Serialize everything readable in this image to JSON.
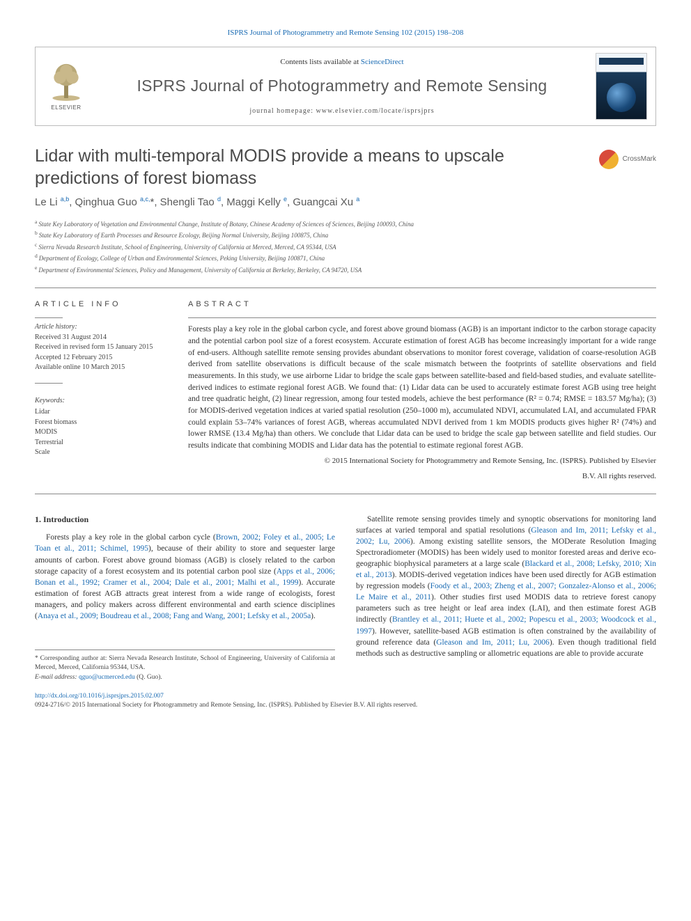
{
  "top_citation": "ISPRS Journal of Photogrammetry and Remote Sensing 102 (2015) 198–208",
  "header": {
    "contents_prefix": "Contents lists available at ",
    "contents_link": "ScienceDirect",
    "journal_name": "ISPRS Journal of Photogrammetry and Remote Sensing",
    "homepage_label": "journal homepage: www.elsevier.com/locate/isprsjprs",
    "publisher_logo_text": "ELSEVIER"
  },
  "crossmark_label": "CrossMark",
  "title": "Lidar with multi-temporal MODIS provide a means to upscale predictions of forest biomass",
  "authors_html": "Le Li <sup>a,b</sup>, Qinghua Guo <sup>a,c,</sup><span class='corr'>*</span>, Shengli Tao <sup>d</sup>, Maggi Kelly <sup>e</sup>, Guangcai Xu <sup>a</sup>",
  "affiliations": [
    {
      "key": "a",
      "text": "State Key Laboratory of Vegetation and Environmental Change, Institute of Botany, Chinese Academy of Sciences of Sciences, Beijing 100093, China"
    },
    {
      "key": "b",
      "text": "State Key Laboratory of Earth Processes and Resource Ecology, Beijing Normal University, Beijing 100875, China"
    },
    {
      "key": "c",
      "text": "Sierra Nevada Research Institute, School of Engineering, University of California at Merced, Merced, CA 95344, USA"
    },
    {
      "key": "d",
      "text": "Department of Ecology, College of Urban and Environmental Sciences, Peking University, Beijing 100871, China"
    },
    {
      "key": "e",
      "text": "Department of Environmental Sciences, Policy and Management, University of California at Berkeley, Berkeley, CA 94720, USA"
    }
  ],
  "article_info": {
    "heading": "article info",
    "history_label": "Article history:",
    "history": [
      "Received 31 August 2014",
      "Received in revised form 15 January 2015",
      "Accepted 12 February 2015",
      "Available online 10 March 2015"
    ],
    "keywords_label": "Keywords:",
    "keywords": [
      "Lidar",
      "Forest biomass",
      "MODIS",
      "Terrestrial",
      "Scale"
    ]
  },
  "abstract": {
    "heading": "abstract",
    "text": "Forests play a key role in the global carbon cycle, and forest above ground biomass (AGB) is an important indictor to the carbon storage capacity and the potential carbon pool size of a forest ecosystem. Accurate estimation of forest AGB has become increasingly important for a wide range of end-users. Although satellite remote sensing provides abundant observations to monitor forest coverage, validation of coarse-resolution AGB derived from satellite observations is difficult because of the scale mismatch between the footprints of satellite observations and field measurements. In this study, we use airborne Lidar to bridge the scale gaps between satellite-based and field-based studies, and evaluate satellite-derived indices to estimate regional forest AGB. We found that: (1) Lidar data can be used to accurately estimate forest AGB using tree height and tree quadratic height, (2) linear regression, among four tested models, achieve the best performance (R² = 0.74; RMSE = 183.57 Mg/ha); (3) for MODIS-derived vegetation indices at varied spatial resolution (250–1000 m), accumulated NDVI, accumulated LAI, and accumulated FPAR could explain 53–74% variances of forest AGB, whereas accumulated NDVI derived from 1 km MODIS products gives higher R² (74%) and lower RMSE (13.4 Mg/ha) than others. We conclude that Lidar data can be used to bridge the scale gap between satellite and field studies. Our results indicate that combining MODIS and Lidar data has the potential to estimate regional forest AGB.",
    "copyright1": "© 2015 International Society for Photogrammetry and Remote Sensing, Inc. (ISPRS). Published by Elsevier",
    "copyright2": "B.V. All rights reserved."
  },
  "body": {
    "intro_heading": "1. Introduction",
    "left_p1_a": "Forests play a key role in the global carbon cycle (",
    "left_p1_cite1": "Brown, 2002; Foley et al., 2005; Le Toan et al., 2011; Schimel, 1995",
    "left_p1_b": "), because of their ability to store and sequester large amounts of carbon. Forest above ground biomass (AGB) is closely related to the carbon storage capacity of a forest ecosystem and its potential carbon pool size (",
    "left_p1_cite2": "Apps et al., 2006; Bonan et al., 1992; Cramer et al., 2004; Dale et al., 2001; Malhi et al., 1999",
    "left_p1_c": "). Accurate estimation of forest AGB attracts great interest from a wide range of ecologists, forest managers, and policy makers across different environmental and earth science disciplines (",
    "left_p1_cite3": "Anaya et al., 2009; Boudreau et al., 2008; Fang and Wang, 2001; Lefsky et al., 2005a",
    "left_p1_d": ").",
    "right_p1_a": "Satellite remote sensing provides timely and synoptic observations for monitoring land surfaces at varied temporal and spatial resolutions (",
    "right_p1_cite1": "Gleason and Im, 2011; Lefsky et al., 2002; Lu, 2006",
    "right_p1_b": "). Among existing satellite sensors, the MODerate Resolution Imaging Spectroradiometer (MODIS) has been widely used to monitor forested areas and derive eco-geographic biophysical parameters at a large scale (",
    "right_p1_cite2": "Blackard et al., 2008; Lefsky, 2010; Xin et al., 2013",
    "right_p1_c": "). MODIS-derived vegetation indices have been used directly for AGB estimation by regression models (",
    "right_p1_cite3": "Foody et al., 2003; Zheng et al., 2007; Gonzalez-Alonso et al., 2006; Le Maire et al., 2011",
    "right_p1_d": "). Other studies first used MODIS data to retrieve forest canopy parameters such as tree height or leaf area index (LAI), and then estimate forest AGB indirectly (",
    "right_p1_cite4": "Brantley et al., 2011; Huete et al., 2002; Popescu et al., 2003; Woodcock et al., 1997",
    "right_p1_e": "). However, satellite-based AGB estimation is often constrained by the availability of ground reference data (",
    "right_p1_cite5": "Gleason and Im, 2011; Lu, 2006",
    "right_p1_f": "). Even though traditional field methods such as destructive sampling or allometric equations are able to provide accurate"
  },
  "footnotes": {
    "corr": "* Corresponding author at: Sierra Nevada Research Institute, School of Engineering, University of California at Merced, Merced, California 95344, USA.",
    "email_label": "E-mail address: ",
    "email": "qguo@ucmerced.edu",
    "email_who": " (Q. Guo)."
  },
  "footer": {
    "doi": "http://dx.doi.org/10.1016/j.isprsjprs.2015.02.007",
    "issn_line": "0924-2716/© 2015 International Society for Photogrammetry and Remote Sensing, Inc. (ISPRS). Published by Elsevier B.V. All rights reserved."
  },
  "colors": {
    "link": "#1a6bb3",
    "text": "#333333",
    "muted": "#555555",
    "rule": "#888888"
  }
}
